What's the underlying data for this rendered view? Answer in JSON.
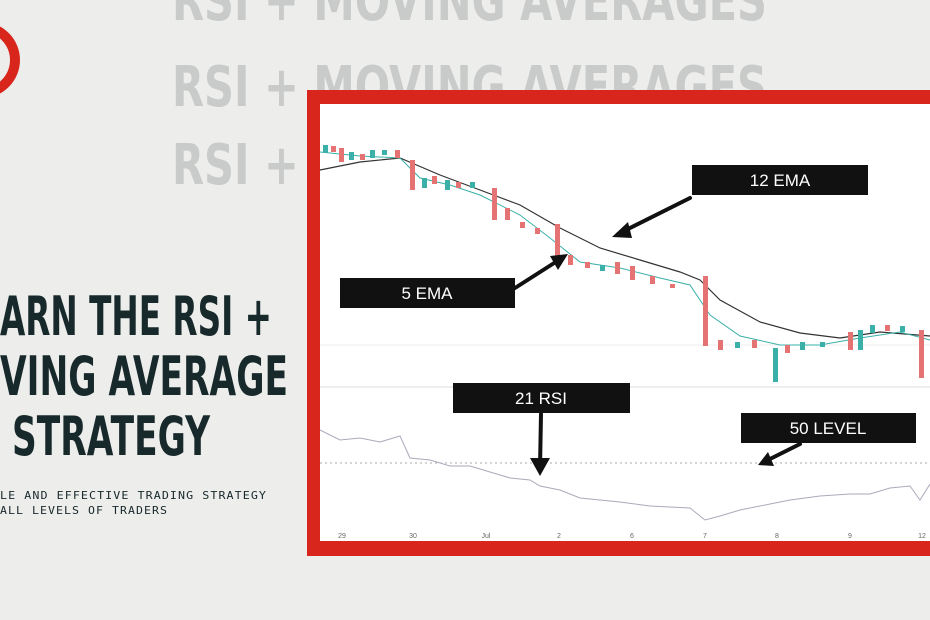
{
  "background_text": [
    "RSI + MOVING AVERAGES",
    "RSI + MOVING AVERAGES",
    "RSI + MOVING AVERAGES"
  ],
  "headline": [
    "ARN THE RSI +",
    "VING AVERAGE",
    "STRATEGY"
  ],
  "subtitle": [
    "LE AND EFFECTIVE TRADING STRATEGY",
    "ALL LEVELS OF TRADERS"
  ],
  "chart_image": {
    "callouts": [
      "12 EMA",
      "5 EMA",
      "21 RSI",
      "50 LEVEL"
    ],
    "x_labels": [
      "29",
      "30",
      "Jul",
      "2",
      "6",
      "7",
      "8",
      "9",
      "12"
    ]
  }
}
